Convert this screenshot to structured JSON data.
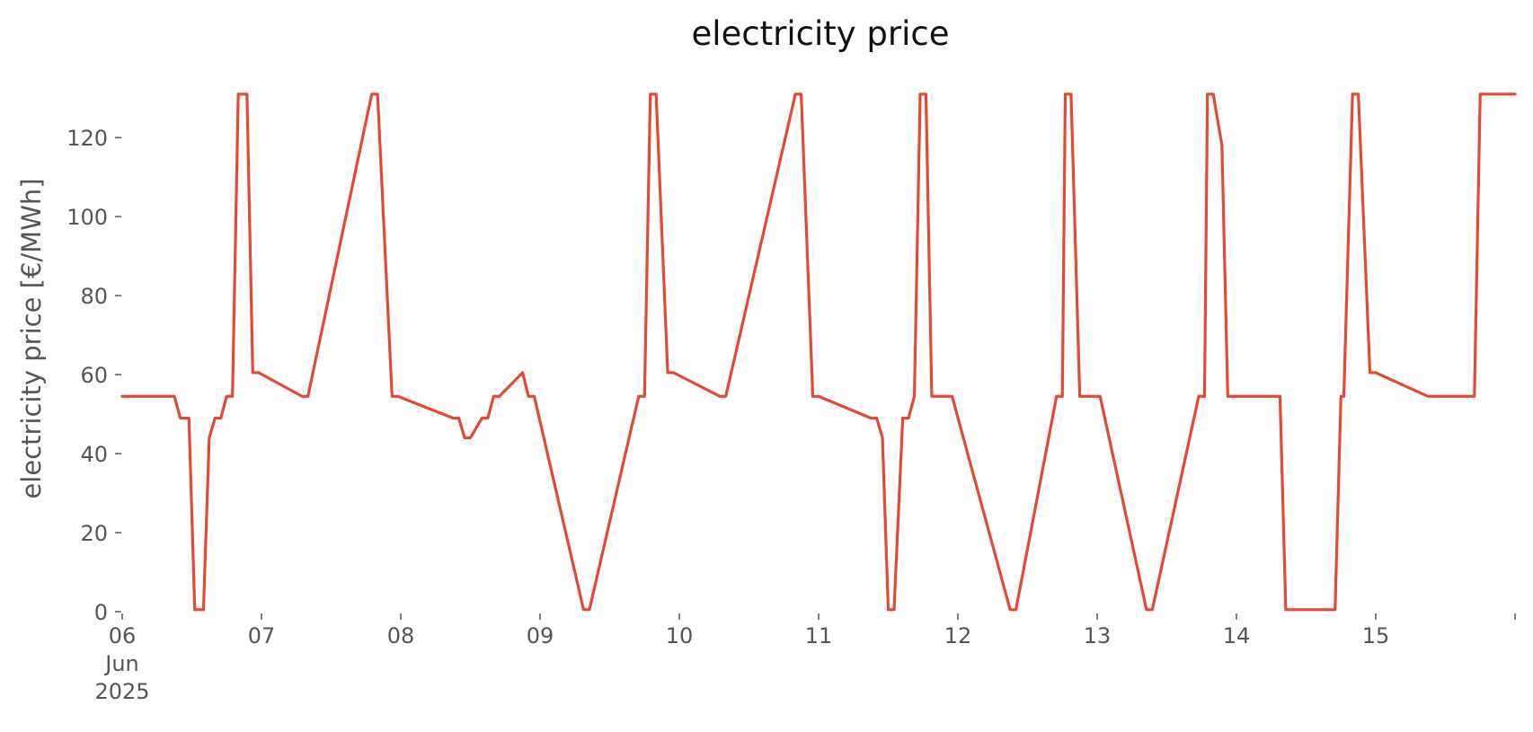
{
  "chart_data": {
    "type": "line",
    "title": "electricity price",
    "xlabel": "",
    "ylabel": "electricity price [€/MWh]",
    "ylim": [
      0,
      133
    ],
    "xlim": [
      "2025-06-06 00:00",
      "2025-06-16 00:00"
    ],
    "grid": false,
    "legend": "none",
    "yticks": [
      0,
      20,
      40,
      60,
      80,
      100,
      120
    ],
    "xticks": [
      {
        "x": "2025-06-06 00:00",
        "lines": [
          "06",
          "Jun",
          "2025"
        ]
      },
      {
        "x": "2025-06-07 00:00",
        "lines": [
          "07"
        ]
      },
      {
        "x": "2025-06-08 00:00",
        "lines": [
          "08"
        ]
      },
      {
        "x": "2025-06-09 00:00",
        "lines": [
          "09"
        ]
      },
      {
        "x": "2025-06-10 00:00",
        "lines": [
          "10"
        ]
      },
      {
        "x": "2025-06-11 00:00",
        "lines": [
          "11"
        ]
      },
      {
        "x": "2025-06-12 00:00",
        "lines": [
          "12"
        ]
      },
      {
        "x": "2025-06-13 00:00",
        "lines": [
          "13"
        ]
      },
      {
        "x": "2025-06-14 00:00",
        "lines": [
          "14"
        ]
      },
      {
        "x": "2025-06-15 00:00",
        "lines": [
          "15"
        ]
      },
      {
        "x": "2025-06-16 00:00",
        "lines": [
          ""
        ]
      }
    ],
    "series": [
      {
        "color": "#e24a33",
        "x": [
          "2025-06-06 00:00",
          "2025-06-06 09:00",
          "2025-06-06 10:00",
          "2025-06-06 11:30",
          "2025-06-06 12:30",
          "2025-06-06 14:00",
          "2025-06-06 15:00",
          "2025-06-06 16:00",
          "2025-06-06 17:00",
          "2025-06-06 18:00",
          "2025-06-06 19:00",
          "2025-06-06 20:00",
          "2025-06-06 21:30",
          "2025-06-06 22:30",
          "2025-06-06 23:30",
          "2025-06-07 07:00",
          "2025-06-07 08:00",
          "2025-06-07 19:00",
          "2025-06-07 20:00",
          "2025-06-07 22:30",
          "2025-06-07 23:30",
          "2025-06-08 09:00",
          "2025-06-08 10:00",
          "2025-06-08 11:00",
          "2025-06-08 12:00",
          "2025-06-08 14:00",
          "2025-06-08 15:00",
          "2025-06-08 16:00",
          "2025-06-08 17:00",
          "2025-06-08 21:00",
          "2025-06-08 22:00",
          "2025-06-08 23:00",
          "2025-06-09 07:30",
          "2025-06-09 08:30",
          "2025-06-09 17:00",
          "2025-06-09 18:00",
          "2025-06-09 19:00",
          "2025-06-09 20:00",
          "2025-06-09 22:00",
          "2025-06-09 23:00",
          "2025-06-10 07:00",
          "2025-06-10 08:00",
          "2025-06-10 20:00",
          "2025-06-10 21:00",
          "2025-06-10 23:00",
          "2025-06-11 00:00",
          "2025-06-11 09:00",
          "2025-06-11 10:00",
          "2025-06-11 11:00",
          "2025-06-11 12:00",
          "2025-06-11 13:00",
          "2025-06-11 14:30",
          "2025-06-11 15:30",
          "2025-06-11 16:30",
          "2025-06-11 17:30",
          "2025-06-11 18:30",
          "2025-06-11 19:30",
          "2025-06-11 21:30",
          "2025-06-11 23:00",
          "2025-06-12 09:00",
          "2025-06-12 10:00",
          "2025-06-12 17:00",
          "2025-06-12 18:00",
          "2025-06-12 18:30",
          "2025-06-12 19:30",
          "2025-06-12 21:00",
          "2025-06-12 23:30",
          "2025-06-13 00:30",
          "2025-06-13 08:30",
          "2025-06-13 09:30",
          "2025-06-13 17:30",
          "2025-06-13 18:30",
          "2025-06-13 19:00",
          "2025-06-13 20:00",
          "2025-06-13 21:30",
          "2025-06-13 22:30",
          "2025-06-14 01:00",
          "2025-06-14 07:30",
          "2025-06-14 08:30",
          "2025-06-14 17:00",
          "2025-06-14 18:00",
          "2025-06-14 18:30",
          "2025-06-14 20:00",
          "2025-06-14 21:00",
          "2025-06-14 23:00",
          "2025-06-14 23:59",
          "2025-06-15 09:00",
          "2025-06-15 10:00",
          "2025-06-15 11:00",
          "2025-06-15 12:00",
          "2025-06-15 13:00",
          "2025-06-15 14:00",
          "2025-06-15 15:00",
          "2025-06-15 15:30",
          "2025-06-15 16:00",
          "2025-06-15 17:00",
          "2025-06-15 18:00",
          "2025-06-16 00:00"
        ],
        "y": [
          54.5,
          54.5,
          49,
          49,
          0.5,
          0.5,
          44,
          49,
          49,
          54.5,
          54.5,
          131,
          131,
          60.5,
          60.5,
          54.5,
          54.5,
          131,
          131,
          54.5,
          54.5,
          49,
          49,
          44,
          44,
          49,
          49,
          54.5,
          54.5,
          60.5,
          54.5,
          54.5,
          0.5,
          0.5,
          54.5,
          54.5,
          131,
          131,
          60.5,
          60.5,
          54.5,
          54.5,
          131,
          131,
          54.5,
          54.5,
          49,
          49,
          44,
          0.5,
          0.5,
          49,
          49,
          54.5,
          131,
          131,
          54.5,
          54.5,
          54.5,
          0.5,
          0.5,
          54.5,
          54.5,
          131,
          131,
          54.5,
          54.5,
          54.5,
          0.5,
          0.5,
          54.5,
          54.5,
          131,
          131,
          118,
          54.5,
          54.5,
          54.5,
          0.5,
          0.5,
          54.5,
          54.5,
          131,
          131,
          60.5,
          60.5,
          54.5,
          54.5,
          54.5,
          54.5,
          54.5,
          54.5,
          54.5,
          54.5,
          54.5,
          54.5,
          131,
          131
        ]
      }
    ]
  }
}
